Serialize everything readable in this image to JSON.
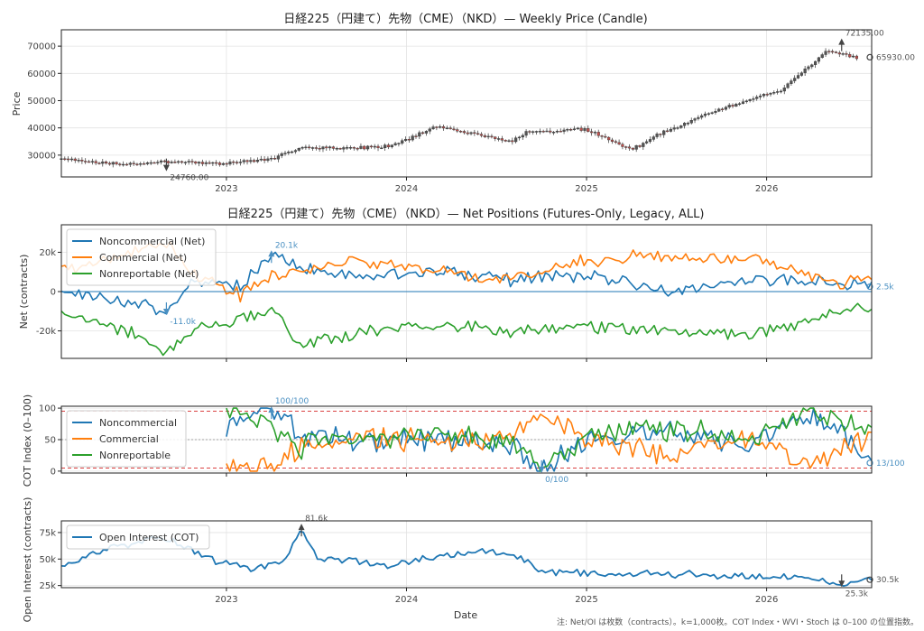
{
  "chart_data": [
    {
      "type": "candlestick",
      "title": "日経225（円建て）先物（CME）（NKD）— Weekly Price (Candle)",
      "ylabel": "Price",
      "x_ticks": [
        "2023",
        "2024",
        "2025",
        "2026"
      ],
      "y_ticks": [
        "30000",
        "40000",
        "50000",
        "60000",
        "70000"
      ],
      "ylim": [
        22000,
        76000
      ],
      "x_range": [
        "2022-02",
        "2026-08"
      ],
      "grid": true,
      "anchors": [
        [
          "2022-02",
          28500
        ],
        [
          "2022-06",
          26500
        ],
        [
          "2022-09",
          27800
        ],
        [
          "2023-01",
          27000
        ],
        [
          "2023-04",
          28500
        ],
        [
          "2023-06",
          33000
        ],
        [
          "2023-09",
          32500
        ],
        [
          "2023-12",
          33500
        ],
        [
          "2024-03",
          40500
        ],
        [
          "2024-08",
          35000
        ],
        [
          "2024-09",
          38500
        ],
        [
          "2025-01",
          39500
        ],
        [
          "2025-04",
          32000
        ],
        [
          "2025-06",
          38000
        ],
        [
          "2025-09",
          45000
        ],
        [
          "2025-12",
          50500
        ],
        [
          "2026-02",
          54000
        ],
        [
          "2026-05",
          68000
        ],
        [
          "2026-07",
          65930
        ]
      ],
      "annotations": [
        {
          "label": "72135.00",
          "date": "2026-06",
          "value": 72135,
          "marker": "max"
        },
        {
          "label": "24760.00",
          "date": "2022-09",
          "value": 24760,
          "marker": "min"
        },
        {
          "label": "65930.00",
          "date": "2026-08",
          "value": 65930,
          "marker": "last"
        }
      ]
    },
    {
      "type": "line",
      "title": "日経225（円建て）先物（CME）（NKD）— Net Positions (Futures-Only, Legacy, ALL)",
      "ylabel": "Net (contracts)",
      "y_ticks": [
        "20k",
        "0",
        "-20k"
      ],
      "ylim": [
        -34000,
        34000
      ],
      "grid": true,
      "legend": "top-left",
      "series": [
        {
          "name": "Noncommercial (Net)",
          "color": "#1f77b4",
          "anchors": [
            [
              "2022-02",
              0
            ],
            [
              "2022-07",
              -6000
            ],
            [
              "2022-09",
              -11000
            ],
            [
              "2022-11",
              6000
            ],
            [
              "2023-02",
              2000
            ],
            [
              "2023-04",
              20100
            ],
            [
              "2023-06",
              12000
            ],
            [
              "2023-10",
              8000
            ],
            [
              "2024-03",
              10000
            ],
            [
              "2024-08",
              6000
            ],
            [
              "2025-01",
              9000
            ],
            [
              "2025-06",
              0
            ],
            [
              "2025-12",
              6000
            ],
            [
              "2026-06",
              5000
            ],
            [
              "2026-08",
              2500
            ]
          ]
        },
        {
          "name": "Commercial (Net)",
          "color": "#ff7f0e",
          "anchors": [
            [
              "2022-02",
              10000
            ],
            [
              "2022-07",
              20000
            ],
            [
              "2022-09",
              24000
            ],
            [
              "2022-11",
              8000
            ],
            [
              "2023-02",
              -2000
            ],
            [
              "2023-04",
              8000
            ],
            [
              "2023-06",
              10000
            ],
            [
              "2023-10",
              16000
            ],
            [
              "2024-03",
              10000
            ],
            [
              "2024-08",
              6000
            ],
            [
              "2025-01",
              16000
            ],
            [
              "2025-06",
              18000
            ],
            [
              "2025-12",
              16000
            ],
            [
              "2026-06",
              4000
            ],
            [
              "2026-08",
              9000
            ]
          ]
        },
        {
          "name": "Nonreportable (Net)",
          "color": "#2ca02c",
          "anchors": [
            [
              "2022-02",
              -10000
            ],
            [
              "2022-07",
              -22000
            ],
            [
              "2022-09",
              -30000
            ],
            [
              "2022-11",
              -18000
            ],
            [
              "2023-02",
              -15000
            ],
            [
              "2023-04",
              -8000
            ],
            [
              "2023-06",
              -28000
            ],
            [
              "2023-10",
              -20000
            ],
            [
              "2024-03",
              -17000
            ],
            [
              "2024-08",
              -20000
            ],
            [
              "2025-01",
              -18000
            ],
            [
              "2025-06",
              -20000
            ],
            [
              "2025-12",
              -22000
            ],
            [
              "2026-06",
              -10000
            ],
            [
              "2026-08",
              -9000
            ]
          ]
        }
      ],
      "annotations": [
        {
          "label": "20.1k",
          "date": "2023-04",
          "value": 20100,
          "marker": "max"
        },
        {
          "label": "-11.0k",
          "date": "2022-09",
          "value": -11000,
          "marker": "min"
        },
        {
          "label": "2.5k",
          "date": "2026-08",
          "value": 2500,
          "marker": "last"
        }
      ]
    },
    {
      "type": "line",
      "ylabel": "COT Index (0–100)",
      "y_ticks": [
        "100",
        "50",
        "0"
      ],
      "ylim": [
        -3,
        103
      ],
      "reference_lines": [
        95,
        50,
        5
      ],
      "grid": true,
      "legend": "top-left",
      "series": [
        {
          "name": "Noncommercial",
          "color": "#1f77b4",
          "anchors": [
            [
              "2023-01",
              70
            ],
            [
              "2023-04",
              100
            ],
            [
              "2023-06",
              60
            ],
            [
              "2023-10",
              45
            ],
            [
              "2024-03",
              55
            ],
            [
              "2024-08",
              40
            ],
            [
              "2024-10",
              0
            ],
            [
              "2025-01",
              50
            ],
            [
              "2025-06",
              60
            ],
            [
              "2025-12",
              45
            ],
            [
              "2026-04",
              90
            ],
            [
              "2026-06",
              60
            ],
            [
              "2026-08",
              13
            ]
          ]
        },
        {
          "name": "Commercial",
          "color": "#ff7f0e",
          "anchors": [
            [
              "2023-01",
              5
            ],
            [
              "2023-03",
              0
            ],
            [
              "2023-06",
              40
            ],
            [
              "2023-10",
              55
            ],
            [
              "2024-03",
              45
            ],
            [
              "2024-08",
              60
            ],
            [
              "2024-10",
              100
            ],
            [
              "2025-01",
              50
            ],
            [
              "2025-06",
              30
            ],
            [
              "2025-12",
              55
            ],
            [
              "2026-04",
              10
            ],
            [
              "2026-06",
              40
            ],
            [
              "2026-08",
              60
            ]
          ]
        },
        {
          "name": "Nonreportable",
          "color": "#2ca02c",
          "anchors": [
            [
              "2023-01",
              100
            ],
            [
              "2023-04",
              70
            ],
            [
              "2023-06",
              40
            ],
            [
              "2023-10",
              50
            ],
            [
              "2024-03",
              60
            ],
            [
              "2024-08",
              45
            ],
            [
              "2024-10",
              10
            ],
            [
              "2025-01",
              55
            ],
            [
              "2025-06",
              70
            ],
            [
              "2025-12",
              50
            ],
            [
              "2026-04",
              100
            ],
            [
              "2026-06",
              80
            ],
            [
              "2026-08",
              65
            ]
          ]
        }
      ],
      "annotations": [
        {
          "label": "100/100",
          "date": "2023-04",
          "value": 100,
          "marker": "max"
        },
        {
          "label": "0/100",
          "date": "2024-10",
          "value": 0,
          "marker": "min"
        },
        {
          "label": "13/100",
          "date": "2026-08",
          "value": 13,
          "marker": "last"
        }
      ]
    },
    {
      "type": "line",
      "ylabel": "Open Interest (contracts)",
      "xlabel": "Date",
      "x_ticks": [
        "2023",
        "2024",
        "2025",
        "2026"
      ],
      "y_ticks": [
        "75k",
        "50k",
        "25k"
      ],
      "ylim": [
        23000,
        86000
      ],
      "grid": true,
      "legend": "top-left",
      "series": [
        {
          "name": "Open Interest (COT)",
          "color": "#1f77b4",
          "anchors": [
            [
              "2022-02",
              45000
            ],
            [
              "2022-06",
              62000
            ],
            [
              "2022-09",
              70000
            ],
            [
              "2022-12",
              50000
            ],
            [
              "2023-03",
              40000
            ],
            [
              "2023-05",
              50000
            ],
            [
              "2023-06",
              81600
            ],
            [
              "2023-07",
              52000
            ],
            [
              "2023-12",
              44000
            ],
            [
              "2024-03",
              52000
            ],
            [
              "2024-06",
              58000
            ],
            [
              "2024-09",
              50000
            ],
            [
              "2024-10",
              38000
            ],
            [
              "2025-03",
              36000
            ],
            [
              "2025-08",
              36000
            ],
            [
              "2025-12",
              32000
            ],
            [
              "2026-03",
              34000
            ],
            [
              "2026-06",
              25300
            ],
            [
              "2026-08",
              30500
            ]
          ]
        }
      ],
      "annotations": [
        {
          "label": "81.6k",
          "date": "2023-06",
          "value": 81600,
          "marker": "max"
        },
        {
          "label": "25.3k",
          "date": "2026-06",
          "value": 25300,
          "marker": "min"
        },
        {
          "label": "30.5k",
          "date": "2026-08",
          "value": 30500,
          "marker": "last"
        }
      ]
    }
  ],
  "footnote": "注: Net/OI は枚数（contracts）。k=1,000枚。COT Index・WVI・Stoch は 0–100 の位置指数。"
}
